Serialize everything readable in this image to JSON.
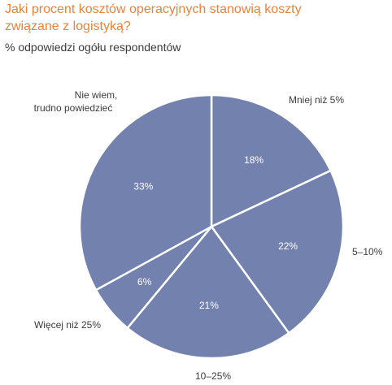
{
  "chart_data": {
    "type": "pie",
    "title_lines": [
      "Jaki procent kosztów operacyjnych stanowią koszty",
      "związane z logistyką?"
    ],
    "subtitle": "% odpowiedzi ogółu respondentów",
    "slices": [
      {
        "label": "Mniej niż 5%",
        "value": 18,
        "value_label": "18%"
      },
      {
        "label": "5–10%",
        "value": 22,
        "value_label": "22%"
      },
      {
        "label": "10–25%",
        "value": 21,
        "value_label": "21%"
      },
      {
        "label": "Więcej niż 25%",
        "value": 6,
        "value_label": "6%"
      },
      {
        "label_lines": [
          "Nie wiem,",
          "trudno powiedzieć"
        ],
        "value": 33,
        "value_label": "33%"
      }
    ],
    "colors": {
      "slice_fill": "#7281ad",
      "slice_border": "#ffffff",
      "title": "#e8833a",
      "text": "#3b3b3b",
      "inner_text": "#ffffff"
    }
  }
}
